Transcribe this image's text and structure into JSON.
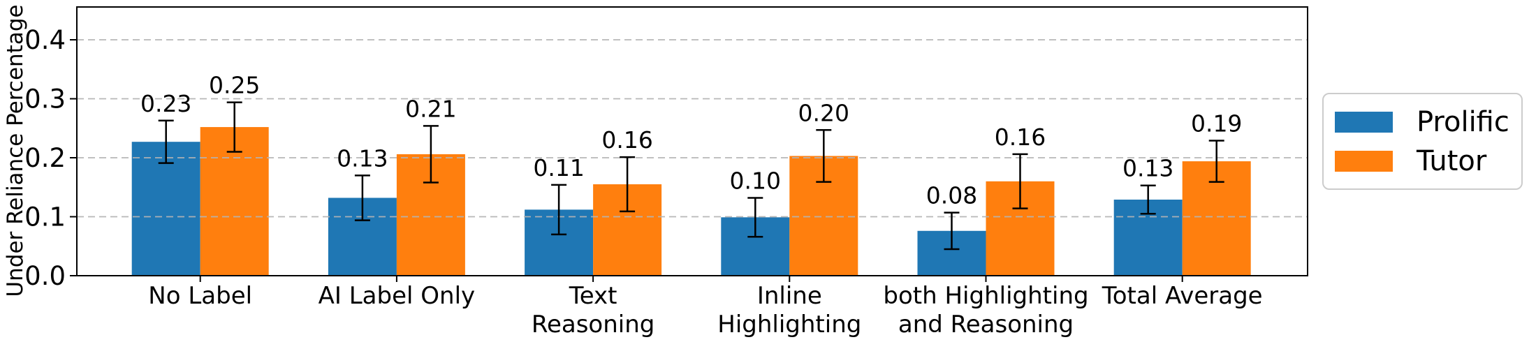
{
  "chart_data": {
    "type": "bar",
    "title": "",
    "xlabel": "",
    "ylabel": "Under Reliance Percentage",
    "categories": [
      "No Label",
      "AI Label Only",
      "Text\nReasoning",
      "Inline\nHighlighting",
      "both Highlighting\nand Reasoning",
      "Total Average"
    ],
    "series": [
      {
        "name": "Prolific",
        "color": "#1f77b4",
        "values": [
          0.227,
          0.132,
          0.112,
          0.099,
          0.076,
          0.129
        ],
        "errors": [
          0.036,
          0.038,
          0.042,
          0.033,
          0.031,
          0.024
        ],
        "value_labels": [
          "0.23",
          "0.13",
          "0.11",
          "0.10",
          "0.08",
          "0.13"
        ]
      },
      {
        "name": "Tutor",
        "color": "#ff7f0e",
        "values": [
          0.252,
          0.206,
          0.155,
          0.203,
          0.16,
          0.194
        ],
        "errors": [
          0.042,
          0.048,
          0.046,
          0.044,
          0.046,
          0.035
        ],
        "value_labels": [
          "0.25",
          "0.21",
          "0.16",
          "0.20",
          "0.16",
          "0.19"
        ]
      }
    ],
    "ylim": [
      0,
      0.456
    ],
    "yticks": [
      0.0,
      0.1,
      0.2,
      0.3,
      0.4
    ],
    "ytick_labels": [
      "0.0",
      "0.1",
      "0.2",
      "0.3",
      "0.4"
    ],
    "grid": "horizontal-dashed-above-bars",
    "grid_color": "#b4b4b4",
    "error_bars": true,
    "error_bar_color": "#000000",
    "legend_position": "outside-right",
    "background_color": "#ffffff"
  }
}
